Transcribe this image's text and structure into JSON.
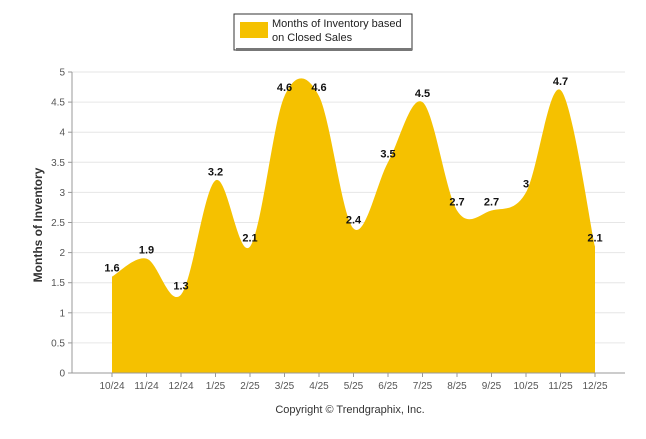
{
  "chart_data": {
    "type": "area",
    "title": "",
    "xlabel": "",
    "ylabel": "Months of Inventory",
    "categories": [
      "10/24",
      "11/24",
      "12/24",
      "1/25",
      "2/25",
      "3/25",
      "4/25",
      "5/25",
      "6/25",
      "7/25",
      "8/25",
      "9/25",
      "10/25",
      "11/25",
      "12/25"
    ],
    "series": [
      {
        "name": "Months of Inventory based on Closed Sales",
        "values": [
          1.6,
          1.9,
          1.3,
          3.2,
          2.1,
          4.6,
          4.6,
          2.4,
          3.5,
          4.5,
          2.7,
          2.7,
          3,
          4.7,
          2.1
        ],
        "color": "#F5C100"
      }
    ],
    "ylim": [
      0,
      5
    ],
    "yticks": [
      "0",
      "0.5",
      "1",
      "1.5",
      "2",
      "2.5",
      "3",
      "3.5",
      "4",
      "4.5",
      "5"
    ],
    "grid": true,
    "legend": {
      "position": "top-center",
      "label_line1": "Months of Inventory based",
      "label_line2": "on Closed Sales"
    }
  },
  "footer": {
    "copyright": "Copyright © Trendgraphix, Inc."
  }
}
